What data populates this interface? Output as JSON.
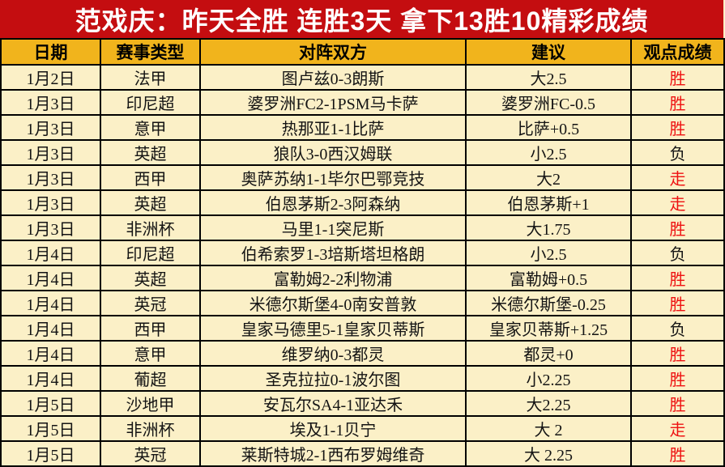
{
  "chart_data": {
    "type": "table",
    "title": "范戏庆：昨天全胜  连胜3天  拿下13胜10精彩成绩",
    "columns": [
      {
        "key": "date",
        "label": "日期"
      },
      {
        "key": "league",
        "label": "赛事类型"
      },
      {
        "key": "match",
        "label": "对阵双方"
      },
      {
        "key": "suggestion",
        "label": "建议"
      },
      {
        "key": "result",
        "label": "观点成绩"
      }
    ],
    "rows": [
      {
        "date": "1月2日",
        "league": "法甲",
        "match": "图卢兹0-3朗斯",
        "suggestion": "大2.5",
        "result": "胜",
        "result_color": "red"
      },
      {
        "date": "1月3日",
        "league": "印尼超",
        "match": "婆罗洲FC2-1PSM马卡萨",
        "suggestion": "婆罗洲FC-0.5",
        "result": "胜",
        "result_color": "red"
      },
      {
        "date": "1月3日",
        "league": "意甲",
        "match": "热那亚1-1比萨",
        "suggestion": "比萨+0.5",
        "result": "胜",
        "result_color": "red"
      },
      {
        "date": "1月3日",
        "league": "英超",
        "match": "狼队3-0西汉姆联",
        "suggestion": "小2.5",
        "result": "负",
        "result_color": "black"
      },
      {
        "date": "1月3日",
        "league": "西甲",
        "match": "奥萨苏纳1-1毕尔巴鄂竞技",
        "suggestion": "大2",
        "result": "走",
        "result_color": "red"
      },
      {
        "date": "1月3日",
        "league": "英超",
        "match": "伯恩茅斯2-3阿森纳",
        "suggestion": "伯恩茅斯+1",
        "result": "走",
        "result_color": "red"
      },
      {
        "date": "1月3日",
        "league": "非洲杯",
        "match": "马里1-1突尼斯",
        "suggestion": "大1.75",
        "result": "胜",
        "result_color": "red"
      },
      {
        "date": "1月4日",
        "league": "印尼超",
        "match": "伯希索罗1-3培斯塔坦格朗",
        "suggestion": "小2.5",
        "result": "负",
        "result_color": "black"
      },
      {
        "date": "1月4日",
        "league": "英超",
        "match": "富勒姆2-2利物浦",
        "suggestion": "富勒姆+0.5",
        "result": "胜",
        "result_color": "red"
      },
      {
        "date": "1月4日",
        "league": "英冠",
        "match": "米德尔斯堡4-0南安普敦",
        "suggestion": "米德尔斯堡-0.25",
        "result": "胜",
        "result_color": "red"
      },
      {
        "date": "1月4日",
        "league": "西甲",
        "match": "皇家马德里5-1皇家贝蒂斯",
        "suggestion": "皇家贝蒂斯+1.25",
        "result": "负",
        "result_color": "black"
      },
      {
        "date": "1月4日",
        "league": "意甲",
        "match": "维罗纳0-3都灵",
        "suggestion": "都灵+0",
        "result": "胜",
        "result_color": "red"
      },
      {
        "date": "1月4日",
        "league": "葡超",
        "match": "圣克拉拉0-1波尔图",
        "suggestion": "小2.25",
        "result": "胜",
        "result_color": "red"
      },
      {
        "date": "1月5日",
        "league": "沙地甲",
        "match": "安瓦尔SA4-1亚达禾",
        "suggestion": "大2.25",
        "result": "胜",
        "result_color": "red"
      },
      {
        "date": "1月5日",
        "league": "非洲杯",
        "match": "埃及1-1贝宁",
        "suggestion": "大 2",
        "result": "走",
        "result_color": "red"
      },
      {
        "date": "1月5日",
        "league": "英冠",
        "match": "莱斯特城2-1西布罗姆维奇",
        "suggestion": "大 2.25",
        "result": "胜",
        "result_color": "red"
      }
    ]
  },
  "colors": {
    "title_bg": "#C40D10",
    "title_text": "#FFFFFF",
    "header_bg": "#F1B41C",
    "header_text": "#000000",
    "cell_bg": "#FBF0C7",
    "border": "#000000",
    "text": "#141414",
    "result_win": "#EE1111",
    "result_loss": "#141414"
  }
}
